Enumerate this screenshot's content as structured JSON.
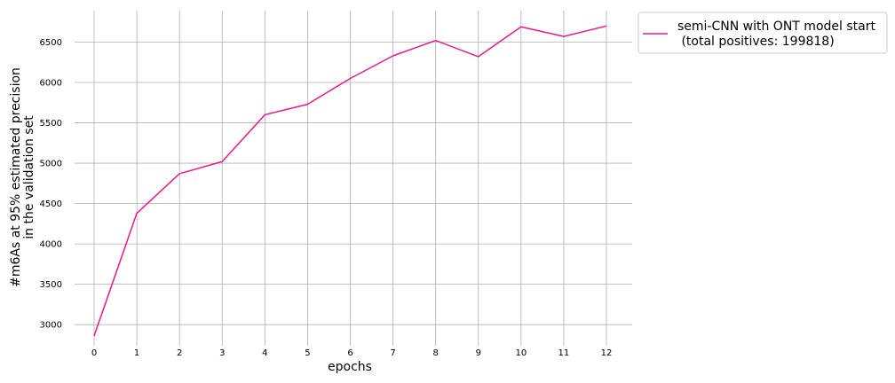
{
  "chart_data": {
    "type": "line",
    "title": "",
    "xlabel": "epochs",
    "ylabel_lines": [
      "#m6As at 95% estimated precision",
      "in the validation set"
    ],
    "x": [
      0,
      1,
      2,
      3,
      4,
      5,
      6,
      7,
      8,
      9,
      10,
      11,
      12
    ],
    "xticks": [
      "0",
      "1",
      "2",
      "3",
      "4",
      "5",
      "6",
      "7",
      "8",
      "9",
      "10",
      "11",
      "12"
    ],
    "yticks": [
      "3000",
      "3500",
      "4000",
      "4500",
      "5000",
      "5500",
      "6000",
      "6500"
    ],
    "ytick_values": [
      3000,
      3500,
      4000,
      4500,
      5000,
      5500,
      6000,
      6500
    ],
    "xlim": [
      0,
      12
    ],
    "ylim": [
      2870,
      6890
    ],
    "grid": true,
    "legend_position": "outside-top-right",
    "series": [
      {
        "name_lines": [
          "semi-CNN with ONT model start",
          " (total positives: 199818)"
        ],
        "color": "#e8198b",
        "values": [
          2860,
          4380,
          4870,
          5020,
          5600,
          5730,
          6050,
          6330,
          6520,
          6320,
          6690,
          6570,
          6700
        ]
      }
    ]
  }
}
